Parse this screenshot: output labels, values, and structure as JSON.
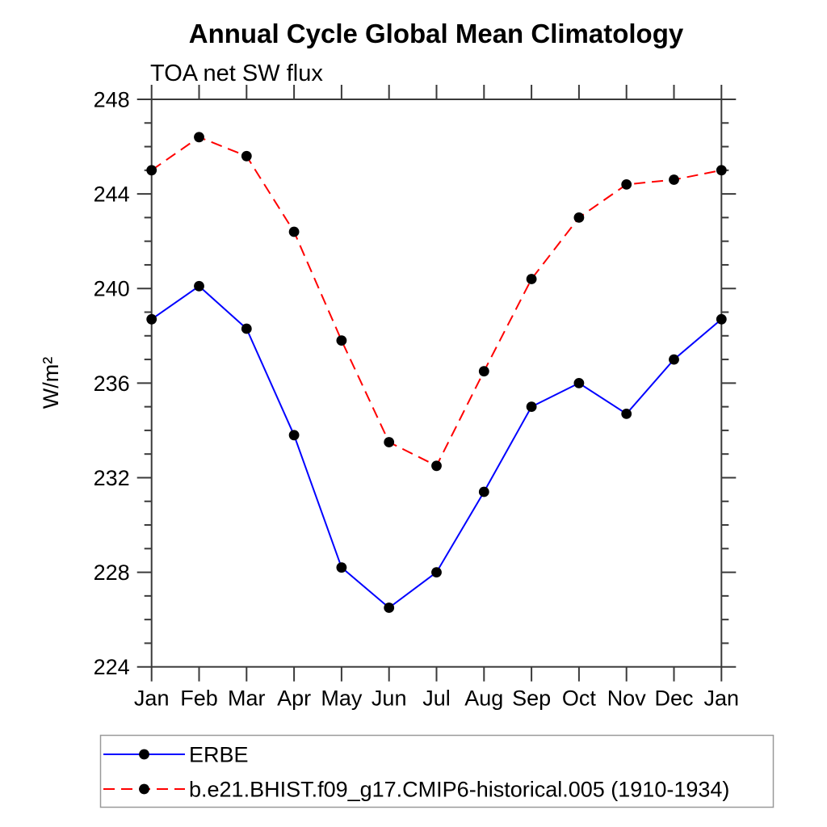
{
  "title": "Annual Cycle Global Mean Climatology",
  "subtitle": "TOA net SW flux",
  "ylabel": "W/m²",
  "colors": {
    "erbe_line": "#0000ff",
    "model_line": "#ff0000",
    "marker": "#000000",
    "frame": "#3a3a3a",
    "legend_border": "#999999"
  },
  "chart_data": {
    "type": "line",
    "categories": [
      "Jan",
      "Feb",
      "Mar",
      "Apr",
      "May",
      "Jun",
      "Jul",
      "Aug",
      "Sep",
      "Oct",
      "Nov",
      "Dec",
      "Jan"
    ],
    "series": [
      {
        "name": "ERBE",
        "color": "#0000ff",
        "style": "solid",
        "marker": "black-filled-circle",
        "values": [
          238.7,
          240.1,
          238.3,
          233.8,
          228.2,
          226.5,
          228.0,
          231.4,
          235.0,
          236.0,
          234.7,
          237.0,
          238.7
        ]
      },
      {
        "name": "b.e21.BHIST.f09_g17.CMIP6-historical.005 (1910-1934)",
        "color": "#ff0000",
        "style": "dashed",
        "marker": "black-filled-circle",
        "values": [
          245.0,
          246.4,
          245.6,
          242.4,
          237.8,
          233.5,
          232.5,
          236.5,
          240.4,
          243.0,
          244.4,
          244.6,
          245.0
        ]
      }
    ],
    "ylim": [
      224,
      248
    ],
    "yticks_major": [
      224,
      228,
      232,
      236,
      240,
      244,
      248
    ],
    "y_minor_step": 1,
    "grid": false,
    "legend_position": "bottom-left-boxed"
  }
}
